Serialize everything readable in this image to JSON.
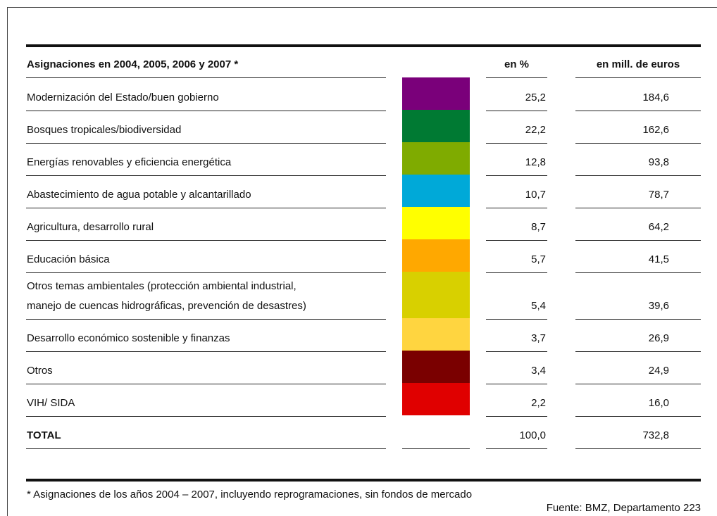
{
  "table": {
    "header": {
      "label": "Asignaciones en 2004, 2005, 2006 y 2007 *",
      "percent": "en %",
      "euros": "en mill. de euros"
    },
    "rows": [
      {
        "label": "Modernización del Estado/buen gobierno",
        "color": "#7a007a",
        "percent": "25,2",
        "euros": "184,6"
      },
      {
        "label": "Bosques tropicales/biodiversidad",
        "color": "#007a33",
        "percent": "22,2",
        "euros": "162,6"
      },
      {
        "label": "Energías renovables y eficiencia energética",
        "color": "#7fab00",
        "percent": "12,8",
        "euros": "93,8"
      },
      {
        "label": "Abastecimiento de agua potable y alcantarillado",
        "color": "#00a9d8",
        "percent": "10,7",
        "euros": "78,7"
      },
      {
        "label": "Agricultura, desarrollo rural",
        "color": "#ffff00",
        "percent": "8,7",
        "euros": "64,2"
      },
      {
        "label": "Educación básica",
        "color": "#ffa800",
        "percent": "5,7",
        "euros": "41,5"
      },
      {
        "label": "Otros temas ambientales (protección ambiental industrial,\nmanejo de cuencas hidrográficas, prevención de desastres)",
        "color": "#d8d000",
        "percent": "5,4",
        "euros": "39,6"
      },
      {
        "label": "Desarrollo económico sostenible y finanzas",
        "color": "#ffd540",
        "percent": "3,7",
        "euros": "26,9"
      },
      {
        "label": "Otros",
        "color": "#7a0000",
        "percent": "3,4",
        "euros": "24,9"
      },
      {
        "label": "VIH/ SIDA",
        "color": "#e00000",
        "percent": "2,2",
        "euros": "16,0"
      }
    ],
    "total": {
      "label": "TOTAL",
      "percent": "100,0",
      "euros": "732,8"
    }
  },
  "footnote": "* Asignaciones de los años 2004 – 2007, incluyendo reprogramaciones, sin fondos de mercado",
  "source": "Fuente: BMZ, Departamento 223"
}
